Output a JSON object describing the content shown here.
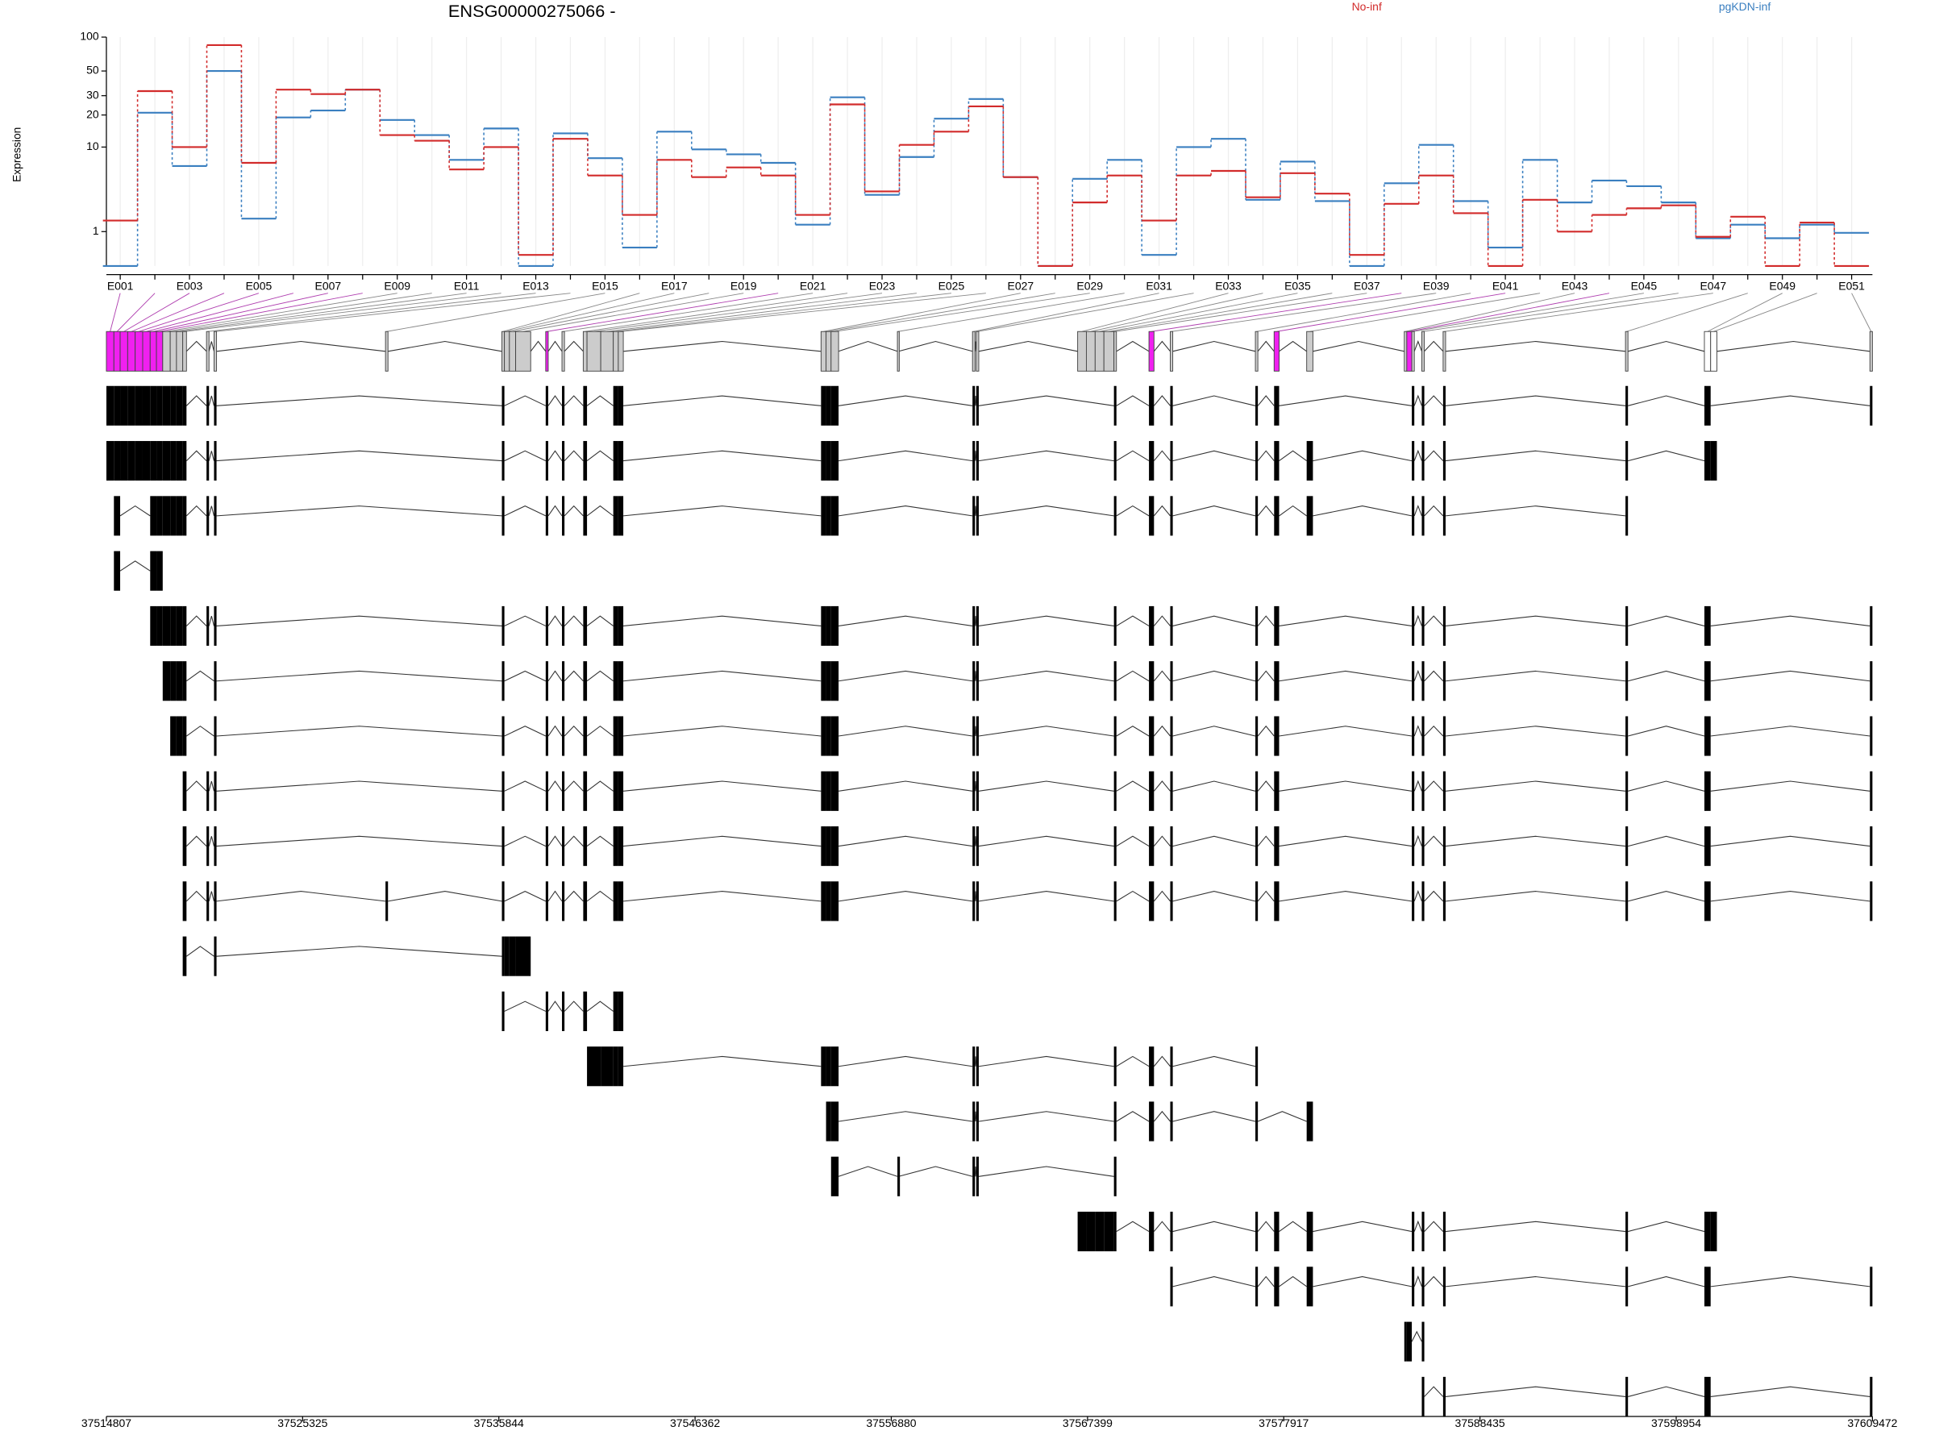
{
  "chart_data": {
    "type": "line",
    "title": "ENSG00000275066 -",
    "ylabel": "Expression",
    "yscale": "log1p",
    "grid": true,
    "ylim": [
      0,
      100
    ],
    "yticks": [
      1,
      10,
      20,
      30,
      50,
      100
    ],
    "categories": [
      "E001",
      null,
      "E003",
      null,
      "E005",
      null,
      "E007",
      null,
      "E009",
      null,
      "E011",
      null,
      "E013",
      null,
      "E015",
      null,
      "E017",
      null,
      "E019",
      null,
      "E021",
      null,
      "E023",
      null,
      "E025",
      null,
      "E027",
      null,
      "E029",
      null,
      "E031",
      null,
      "E033",
      null,
      "E035",
      null,
      "E037",
      null,
      "E039",
      null,
      "E041",
      null,
      "E043",
      null,
      "E045",
      null,
      "E047",
      null,
      "E049",
      null,
      "E051"
    ],
    "series": [
      {
        "name": "pgKDN-inf",
        "color": "#3a7fc0",
        "values": [
          0,
          21,
          6.5,
          50,
          1.6,
          19,
          22,
          34,
          18,
          13,
          7.5,
          15,
          0,
          13.5,
          7.8,
          0.45,
          14,
          9.5,
          8.5,
          7,
          1.3,
          29,
          3.2,
          8,
          18.5,
          28,
          5,
          0,
          4.8,
          7.5,
          0.25,
          10,
          12,
          2.8,
          7.2,
          2.7,
          0,
          4.3,
          10.5,
          2.7,
          0.45,
          7.5,
          2.6,
          4.6,
          4,
          2.6,
          0.75,
          1.3,
          0.75,
          1.3,
          0.95
        ]
      },
      {
        "name": "No-inf",
        "color": "#d22b2b",
        "values": [
          1.5,
          33,
          10,
          85,
          7,
          34,
          31,
          34,
          13,
          11.5,
          6,
          10,
          0.25,
          12,
          5.2,
          1.8,
          7.5,
          5,
          6.3,
          5.2,
          1.8,
          25,
          3.5,
          10.5,
          14,
          24,
          5,
          0,
          2.6,
          5.2,
          1.5,
          5.2,
          5.8,
          3,
          5.5,
          3.3,
          0.25,
          2.5,
          5.2,
          1.9,
          0,
          2.8,
          1,
          1.8,
          2.2,
          2.4,
          0.8,
          1.7,
          0,
          1.4,
          0
        ]
      }
    ],
    "glim": [
      37514807,
      37609472
    ],
    "gticks": [
      37514807,
      37525325,
      37535844,
      37546362,
      37556880,
      37567399,
      37577917,
      37588435,
      37598954,
      37609472
    ],
    "exons": [
      [
        37514807,
        37515210
      ],
      [
        37515210,
        37515545
      ],
      [
        37515545,
        37515948
      ],
      [
        37515948,
        37516350
      ],
      [
        37516350,
        37516753
      ],
      [
        37516753,
        37517155
      ],
      [
        37517155,
        37517491
      ],
      [
        37517491,
        37517826
      ],
      [
        37517826,
        37518229
      ],
      [
        37518229,
        37518564
      ],
      [
        37518564,
        37518899
      ],
      [
        37518899,
        37519101
      ],
      [
        37520174,
        37520308
      ],
      [
        37520577,
        37520711
      ],
      [
        37529768,
        37529902
      ],
      [
        37536007,
        37536142
      ],
      [
        37536142,
        37536410
      ],
      [
        37536410,
        37536745
      ],
      [
        37536745,
        37537551
      ],
      [
        37538356,
        37538490
      ],
      [
        37539228,
        37539362
      ],
      [
        37540368,
        37540570
      ],
      [
        37540570,
        37541307
      ],
      [
        37541307,
        37541978
      ],
      [
        37541978,
        37542247
      ],
      [
        37542247,
        37542515
      ],
      [
        37553115,
        37553384
      ],
      [
        37553384,
        37553652
      ],
      [
        37553652,
        37554055
      ],
      [
        37557208,
        37557275
      ],
      [
        37561233,
        37561367
      ],
      [
        37561435,
        37561569
      ],
      [
        37566869,
        37567338
      ],
      [
        37567338,
        37567808
      ],
      [
        37567808,
        37568278
      ],
      [
        37568278,
        37568815
      ],
      [
        37568815,
        37568949
      ],
      [
        37570693,
        37570962
      ],
      [
        37571834,
        37571968
      ],
      [
        37576396,
        37576530
      ],
      [
        37577401,
        37577670
      ],
      [
        37579146,
        37579481
      ],
      [
        37584379,
        37584513
      ],
      [
        37584513,
        37584782
      ],
      [
        37584782,
        37584916
      ],
      [
        37585317,
        37585452
      ],
      [
        37586459,
        37586593
      ],
      [
        37596235,
        37596369
      ],
      [
        37600465,
        37600800
      ],
      [
        37600800,
        37601135
      ],
      [
        37609337,
        37609472
      ]
    ],
    "exon_colors": [
      "#f020f0",
      "#f020f0",
      "#f020f0",
      "#f020f0",
      "#f020f0",
      "#f020f0",
      "#f020f0",
      "#f020f0",
      "#cccccc",
      "#cccccc",
      "#cccccc",
      "#cccccc",
      "#cccccc",
      "#cccccc",
      "#cccccc",
      "#cccccc",
      "#cccccc",
      "#cccccc",
      "#cccccc",
      "#f020f0",
      "#cccccc",
      "#cccccc",
      "#cccccc",
      "#cccccc",
      "#cccccc",
      "#cccccc",
      "#cccccc",
      "#cccccc",
      "#cccccc",
      "#cccccc",
      "#cccccc",
      "#cccccc",
      "#cccccc",
      "#cccccc",
      "#cccccc",
      "#cccccc",
      "#cccccc",
      "#f020f0",
      "#cccccc",
      "#cccccc",
      "#f020f0",
      "#cccccc",
      "#cccccc",
      "#f020f0",
      "#cccccc",
      "#cccccc",
      "#cccccc",
      "#cccccc",
      "#ffffff",
      "#ffffff",
      "#cccccc"
    ],
    "transcripts": [
      [
        0,
        1,
        2,
        3,
        4,
        5,
        6,
        7,
        8,
        9,
        10,
        11,
        12,
        13,
        15,
        19,
        20,
        21,
        24,
        25,
        26,
        27,
        28,
        30,
        31,
        36,
        37,
        38,
        39,
        40,
        44,
        45,
        46,
        47,
        48,
        50
      ],
      [
        0,
        1,
        2,
        3,
        4,
        5,
        6,
        7,
        8,
        9,
        10,
        11,
        12,
        13,
        15,
        19,
        20,
        21,
        24,
        25,
        26,
        27,
        28,
        30,
        31,
        36,
        37,
        38,
        39,
        40,
        41,
        44,
        45,
        46,
        47,
        48,
        49
      ],
      [
        1,
        6,
        7,
        8,
        9,
        10,
        11,
        12,
        13,
        15,
        19,
        20,
        21,
        24,
        25,
        26,
        27,
        28,
        30,
        31,
        36,
        37,
        38,
        39,
        40,
        41,
        44,
        45,
        46,
        47
      ],
      [
        1,
        6,
        7
      ],
      [
        6,
        7,
        8,
        9,
        10,
        11,
        12,
        13,
        15,
        19,
        20,
        21,
        24,
        25,
        26,
        27,
        28,
        30,
        31,
        36,
        37,
        38,
        39,
        40,
        44,
        45,
        46,
        47,
        48,
        50
      ],
      [
        8,
        9,
        10,
        11,
        13,
        15,
        19,
        20,
        21,
        24,
        25,
        26,
        27,
        28,
        30,
        31,
        36,
        37,
        38,
        39,
        40,
        44,
        45,
        46,
        47,
        48,
        50
      ],
      [
        9,
        10,
        11,
        13,
        15,
        19,
        20,
        21,
        24,
        25,
        26,
        27,
        28,
        30,
        31,
        36,
        37,
        38,
        39,
        40,
        44,
        45,
        46,
        47,
        48,
        50
      ],
      [
        11,
        12,
        13,
        15,
        19,
        20,
        21,
        24,
        25,
        26,
        27,
        28,
        30,
        31,
        36,
        37,
        38,
        39,
        40,
        44,
        45,
        46,
        47,
        48,
        50
      ],
      [
        11,
        12,
        13,
        15,
        19,
        20,
        21,
        24,
        25,
        26,
        27,
        28,
        30,
        31,
        36,
        37,
        38,
        39,
        40,
        44,
        45,
        46,
        47,
        48,
        50
      ],
      [
        11,
        12,
        13,
        14,
        15,
        19,
        20,
        21,
        24,
        25,
        26,
        27,
        28,
        30,
        31,
        36,
        37,
        38,
        39,
        40,
        44,
        45,
        46,
        47,
        48,
        50
      ],
      [
        11,
        13,
        15,
        16,
        17,
        18
      ],
      [
        15,
        19,
        20,
        21,
        24,
        25
      ],
      [
        22,
        23,
        24,
        25,
        26,
        27,
        28,
        30,
        31,
        36,
        37,
        38,
        39
      ],
      [
        27,
        28,
        30,
        31,
        36,
        37,
        38,
        39,
        41
      ],
      [
        28,
        29,
        30,
        31,
        36
      ],
      [
        32,
        33,
        34,
        35,
        36,
        37,
        38,
        39,
        40,
        41,
        44,
        45,
        46,
        47,
        48,
        49
      ],
      [
        38,
        39,
        40,
        41,
        44,
        45,
        46,
        47,
        48,
        50
      ],
      [
        42,
        43,
        45
      ],
      [
        45,
        46,
        47,
        48,
        50
      ]
    ]
  }
}
